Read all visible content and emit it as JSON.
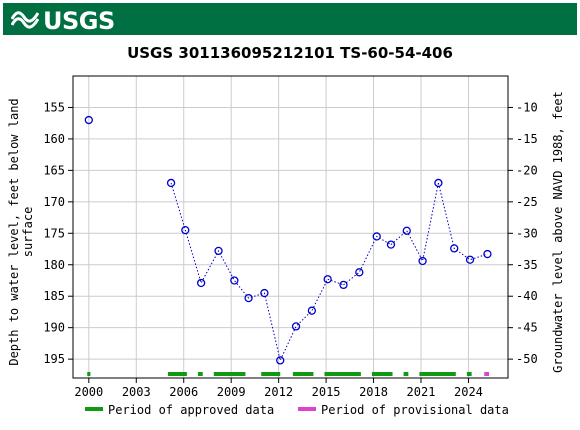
{
  "banner": {
    "logo_text": "USGS",
    "logo_icon": "usgs-wave-icon",
    "bg_color": "#006f41"
  },
  "chart_data": {
    "type": "scatter",
    "title": "USGS 301136095212101 TS-60-54-406",
    "ylabel_left": [
      "Depth to water level, feet below land",
      "surface"
    ],
    "ylabel_right": "Groundwater level above NAVD 1988, feet",
    "x_ticks": [
      2000,
      2003,
      2006,
      2009,
      2012,
      2015,
      2018,
      2021,
      2024
    ],
    "xlim": [
      1999.0,
      2026.5
    ],
    "ylim_left": [
      198.0,
      150.0
    ],
    "y_ticks_left": [
      155,
      160,
      165,
      170,
      175,
      180,
      185,
      190,
      195
    ],
    "y_ticks_right": [
      -10,
      -15,
      -20,
      -25,
      -30,
      -35,
      -40,
      -45,
      -50
    ],
    "right_offset": 145,
    "grid": true,
    "point_color": "#0000cc",
    "points": [
      {
        "x": 2000.0,
        "y": 157.0
      },
      {
        "x": 2005.2,
        "y": 167.0
      },
      {
        "x": 2006.1,
        "y": 174.5
      },
      {
        "x": 2007.1,
        "y": 182.9
      },
      {
        "x": 2008.2,
        "y": 177.8
      },
      {
        "x": 2009.2,
        "y": 182.5
      },
      {
        "x": 2010.1,
        "y": 185.3
      },
      {
        "x": 2011.1,
        "y": 184.5
      },
      {
        "x": 2012.1,
        "y": 195.2
      },
      {
        "x": 2013.1,
        "y": 189.8
      },
      {
        "x": 2014.1,
        "y": 187.3
      },
      {
        "x": 2015.1,
        "y": 182.3
      },
      {
        "x": 2016.1,
        "y": 183.2
      },
      {
        "x": 2017.1,
        "y": 181.2
      },
      {
        "x": 2018.2,
        "y": 175.5
      },
      {
        "x": 2019.1,
        "y": 176.8
      },
      {
        "x": 2020.1,
        "y": 174.6
      },
      {
        "x": 2021.1,
        "y": 179.4
      },
      {
        "x": 2022.1,
        "y": 167.0
      },
      {
        "x": 2023.1,
        "y": 177.4
      },
      {
        "x": 2024.1,
        "y": 179.2
      },
      {
        "x": 2025.2,
        "y": 178.3
      }
    ],
    "dotted_segments": [
      [
        1,
        12
      ],
      [
        12,
        15
      ],
      [
        15,
        16
      ],
      [
        16,
        18
      ],
      [
        18,
        21
      ],
      [
        21,
        22
      ]
    ],
    "approved_periods": [
      [
        1999.9,
        2000.1
      ],
      [
        2005.0,
        2006.2
      ],
      [
        2006.9,
        2007.2
      ],
      [
        2007.9,
        2009.9
      ],
      [
        2010.9,
        2012.1
      ],
      [
        2012.9,
        2014.2
      ],
      [
        2014.9,
        2017.2
      ],
      [
        2017.9,
        2019.2
      ],
      [
        2019.9,
        2020.2
      ],
      [
        2020.9,
        2023.2
      ],
      [
        2023.9,
        2024.2
      ]
    ],
    "provisional_periods": [
      [
        2025.0,
        2025.3
      ]
    ],
    "approved_color": "#119911",
    "provisional_color": "#dd44cc",
    "legend": {
      "approved_label": "Period of approved data",
      "provisional_label": "Period of provisional data",
      "placement": "bottom"
    }
  }
}
